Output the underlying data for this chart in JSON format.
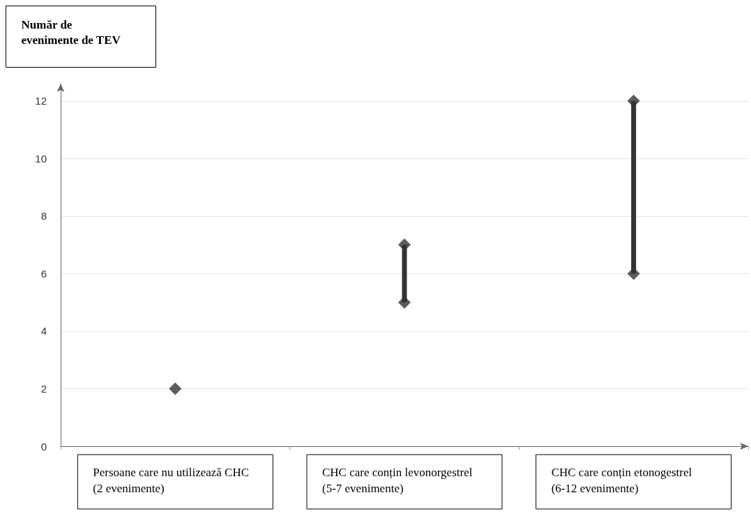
{
  "chart_data": {
    "type": "bar",
    "ylabel": "Număr de evenimente de TEV",
    "categories": [
      "Persoane care nu utilizează CHC\n(2 evenimente)",
      "CHC care conțin levonorgestrel\n(5-7 evenimente)",
      "CHC care conțin etonogestrel\n(6-12 evenimente)"
    ],
    "series": [
      {
        "color": "#333333",
        "base": [
          null,
          5,
          6
        ],
        "values": [
          null,
          2,
          6
        ]
      },
      {
        "type": "scatter",
        "color": "#333333",
        "values": [
          2,
          5,
          6
        ]
      },
      {
        "type": "scatter",
        "color": "#333333",
        "values": [
          null,
          7,
          12
        ]
      }
    ],
    "marker": "diamond",
    "ylim": [
      0,
      12.6
    ],
    "yticks": [
      0,
      2,
      4,
      6,
      8,
      10,
      12
    ],
    "grid": "y"
  }
}
